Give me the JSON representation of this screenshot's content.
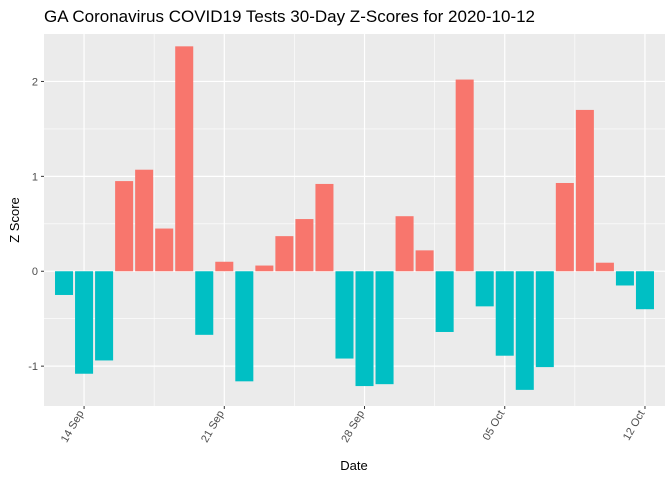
{
  "chart_data": {
    "type": "bar",
    "title": "GA Coronavirus COVID19 Tests 30-Day Z-Scores for 2020-10-12",
    "xlabel": "Date",
    "ylabel": "Z Score",
    "ylim": [
      -1.42,
      2.5
    ],
    "xlim": [
      "2020-09-12",
      "2020-10-13"
    ],
    "x_ticks": [
      {
        "date": "2020-09-14",
        "label": "14 Sep"
      },
      {
        "date": "2020-09-21",
        "label": "21 Sep"
      },
      {
        "date": "2020-09-28",
        "label": "28 Sep"
      },
      {
        "date": "2020-10-05",
        "label": "05 Oct"
      },
      {
        "date": "2020-10-12",
        "label": "12 Oct"
      }
    ],
    "y_ticks": [
      -1,
      0,
      1,
      2
    ],
    "grid": true,
    "legend": "none",
    "colors": {
      "positive": "#F8766D",
      "negative": "#00BFC4",
      "panel": "#EBEBEB",
      "grid": "#ffffff"
    },
    "dates": [
      "2020-09-13",
      "2020-09-14",
      "2020-09-15",
      "2020-09-16",
      "2020-09-17",
      "2020-09-18",
      "2020-09-19",
      "2020-09-20",
      "2020-09-21",
      "2020-09-22",
      "2020-09-23",
      "2020-09-24",
      "2020-09-25",
      "2020-09-26",
      "2020-09-27",
      "2020-09-28",
      "2020-09-29",
      "2020-09-30",
      "2020-10-01",
      "2020-10-02",
      "2020-10-03",
      "2020-10-04",
      "2020-10-05",
      "2020-10-06",
      "2020-10-07",
      "2020-10-08",
      "2020-10-09",
      "2020-10-10",
      "2020-10-11",
      "2020-10-12"
    ],
    "values": [
      -0.25,
      -1.08,
      -0.94,
      0.95,
      1.07,
      0.45,
      2.37,
      -0.67,
      0.1,
      -1.16,
      0.06,
      0.37,
      0.55,
      0.92,
      -0.92,
      -1.21,
      -1.19,
      0.58,
      0.22,
      -0.64,
      2.02,
      -0.37,
      -0.89,
      -1.25,
      -1.01,
      0.93,
      1.7,
      0.09,
      -0.15,
      -0.4
    ]
  }
}
